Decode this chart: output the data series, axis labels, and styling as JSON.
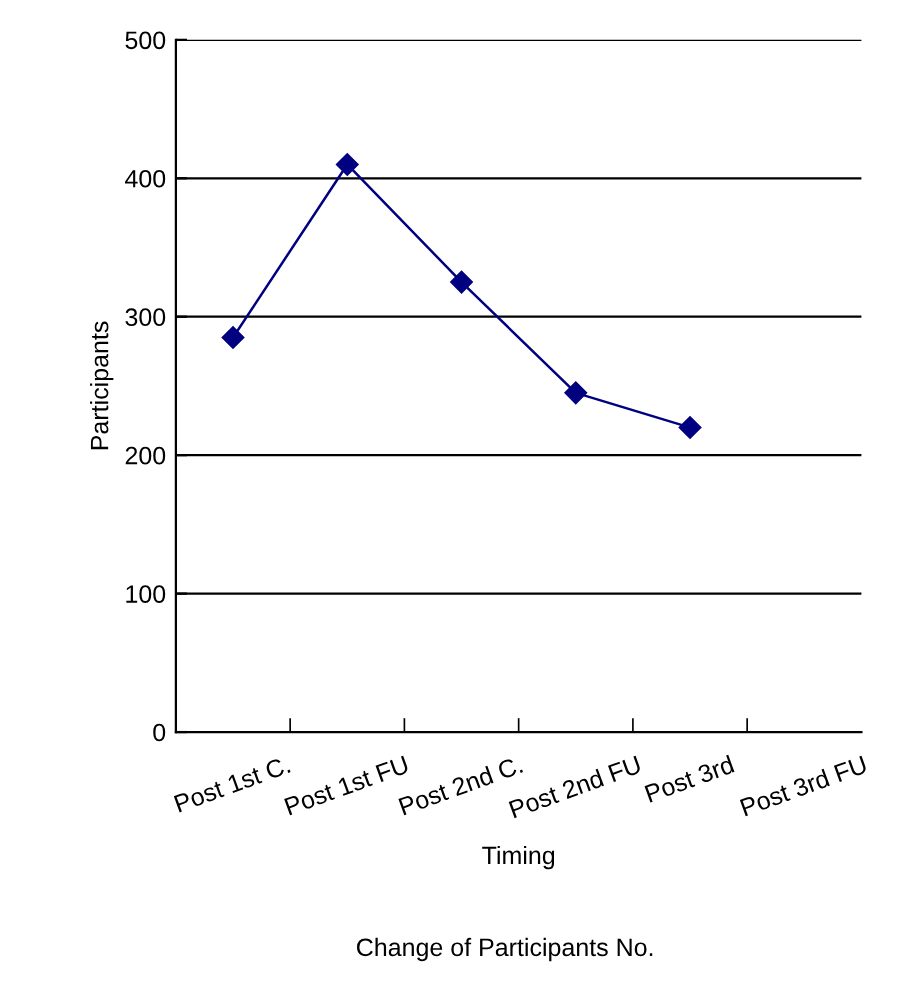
{
  "chart_data": {
    "type": "line",
    "title": "Change of Participants No.",
    "xlabel": "Timing",
    "ylabel": "Participants",
    "categories": [
      "Post 1st C.",
      "Post 1st FU",
      "Post 2nd C.",
      "Post 2nd FU",
      "Post 3rd",
      "Post 3rd FU"
    ],
    "series": [
      {
        "color": "#000080",
        "values": [
          285,
          410,
          325,
          245,
          220,
          null
        ]
      }
    ],
    "ylim": [
      0,
      500
    ],
    "yticks": [
      0,
      100,
      200,
      300,
      400,
      500
    ],
    "grid": "y",
    "marker": "diamond",
    "line_style": "solid",
    "legend": false
  }
}
